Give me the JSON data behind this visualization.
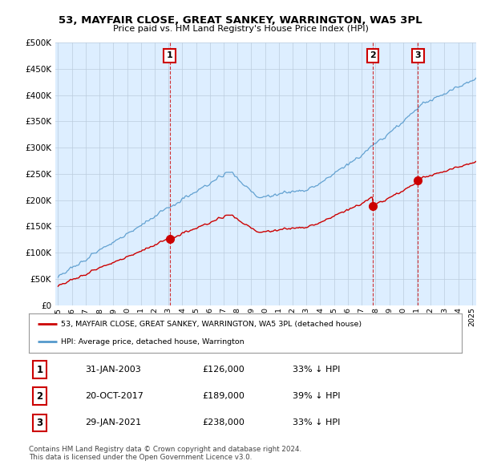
{
  "title": "53, MAYFAIR CLOSE, GREAT SANKEY, WARRINGTON, WA5 3PL",
  "subtitle": "Price paid vs. HM Land Registry's House Price Index (HPI)",
  "ylim": [
    0,
    500000
  ],
  "sale_dates": [
    2003.08,
    2017.79,
    2021.08
  ],
  "sale_prices": [
    126000,
    189000,
    238000
  ],
  "sale_labels": [
    "1",
    "2",
    "3"
  ],
  "sale_info": [
    {
      "label": "1",
      "date": "31-JAN-2003",
      "price": "£126,000",
      "pct": "33% ↓ HPI"
    },
    {
      "label": "2",
      "date": "20-OCT-2017",
      "price": "£189,000",
      "pct": "39% ↓ HPI"
    },
    {
      "label": "3",
      "date": "29-JAN-2021",
      "price": "£238,000",
      "pct": "33% ↓ HPI"
    }
  ],
  "legend_red": "53, MAYFAIR CLOSE, GREAT SANKEY, WARRINGTON, WA5 3PL (detached house)",
  "legend_blue": "HPI: Average price, detached house, Warrington",
  "footer": "Contains HM Land Registry data © Crown copyright and database right 2024.\nThis data is licensed under the Open Government Licence v3.0.",
  "red_color": "#cc0000",
  "blue_color": "#5599cc",
  "chart_bg": "#ddeeff",
  "grid_color": "#bbccdd",
  "background_color": "#ffffff",
  "vline_color": "#cc0000",
  "label_box_color": "#cc0000"
}
